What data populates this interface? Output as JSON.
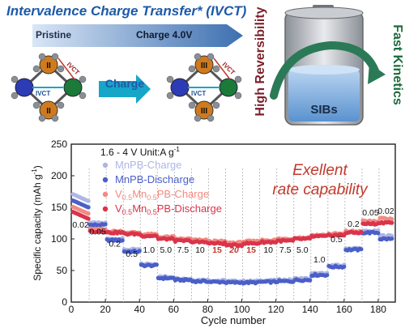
{
  "header": {
    "title": "Intervalence Charge Transfer* (IVCT)",
    "arrow_left": "Pristine",
    "arrow_right": "Charge  4.0V",
    "charge_arrow": "Charge",
    "ion_labels": {
      "mn_left": "II",
      "fe_right": "III"
    },
    "ivct_label_top": "IVCT",
    "ivct_sub_top": "FV",
    "ivct_label_bottom": "IVCT",
    "ivct_sub_bottom": "MV",
    "colors": {
      "title": "#1d5aa8",
      "arrow_band": "#3d6fb0",
      "mn_ion": "#2d3bb5",
      "v_ion": "#d07a1e",
      "fe_ion": "#1b7a3a",
      "cyan_arrow": "#16a6c8"
    }
  },
  "battery_panel": {
    "battery_label": "SIBs",
    "left_vertical": "High Reversibility",
    "right_vertical": "Fast Kinetics",
    "colors": {
      "left_text": "#7a1f2b",
      "right_text": "#1b6a3a",
      "arrow": "#2a7a57"
    }
  },
  "chart_data": {
    "type": "scatter",
    "xlabel": "Cycle number",
    "ylabel": "Specific capacity (mAh g",
    "ylabel_superscript": "-1",
    "ylabel_close": ")",
    "xlim": [
      0,
      190
    ],
    "ylim": [
      0,
      250
    ],
    "xticks": [
      0,
      20,
      40,
      60,
      80,
      100,
      120,
      140,
      160,
      180
    ],
    "yticks": [
      0,
      50,
      100,
      150,
      200,
      250
    ],
    "condition_text": "1.6 - 4 V Unit:A g",
    "condition_superscript": "-1",
    "annotation": [
      "Exellent",
      "rate capability"
    ],
    "rate_segments": [
      {
        "label": "0.02",
        "start": 1,
        "end": 10
      },
      {
        "label": "0.05",
        "start": 11,
        "end": 20
      },
      {
        "label": "0.2",
        "start": 21,
        "end": 30
      },
      {
        "label": "0.5",
        "start": 31,
        "end": 40
      },
      {
        "label": "1.0",
        "start": 41,
        "end": 50
      },
      {
        "label": "5.0",
        "start": 51,
        "end": 60
      },
      {
        "label": "7.5",
        "start": 61,
        "end": 70
      },
      {
        "label": "10",
        "start": 71,
        "end": 80
      },
      {
        "label": "15",
        "start": 81,
        "end": 90
      },
      {
        "label": "20",
        "start": 91,
        "end": 100
      },
      {
        "label": "15",
        "start": 101,
        "end": 110
      },
      {
        "label": "10",
        "start": 111,
        "end": 120
      },
      {
        "label": "7.5",
        "start": 121,
        "end": 130
      },
      {
        "label": "5.0",
        "start": 131,
        "end": 140
      },
      {
        "label": "1.0",
        "start": 141,
        "end": 150
      },
      {
        "label": "0.5",
        "start": 151,
        "end": 160
      },
      {
        "label": "0.2",
        "start": 161,
        "end": 170
      },
      {
        "label": "0.05",
        "start": 171,
        "end": 180
      },
      {
        "label": "0.02",
        "start": 181,
        "end": 188
      }
    ],
    "series": [
      {
        "name": "MnPB-Charge",
        "color": "#aeb6e6",
        "levels": [
          160,
          125,
          100,
          83,
          60,
          40,
          37,
          35,
          34,
          33,
          33,
          34,
          35,
          37,
          45,
          58,
          85,
          112,
          105
        ]
      },
      {
        "name": "MnPB-Discharge",
        "color": "#4a5fc8",
        "levels": [
          150,
          122,
          98,
          80,
          58,
          38,
          35,
          33,
          32,
          31,
          31,
          32,
          33,
          35,
          43,
          56,
          83,
          110,
          100
        ]
      },
      {
        "name": "V0.5Mn0.5PB-Charge",
        "color": "#f28a82",
        "levels": [
          140,
          115,
          112,
          110,
          107,
          103,
          100,
          98,
          96,
          94,
          96,
          98,
          100,
          102,
          106,
          108,
          112,
          128,
          132
        ]
      },
      {
        "name": "V0.5Mn0.5PB-Discharge",
        "color": "#d9344a",
        "levels": [
          132,
          112,
          110,
          108,
          105,
          100,
          97,
          95,
          93,
          90,
          93,
          95,
          97,
          100,
          104,
          106,
          110,
          124,
          126
        ]
      }
    ]
  }
}
